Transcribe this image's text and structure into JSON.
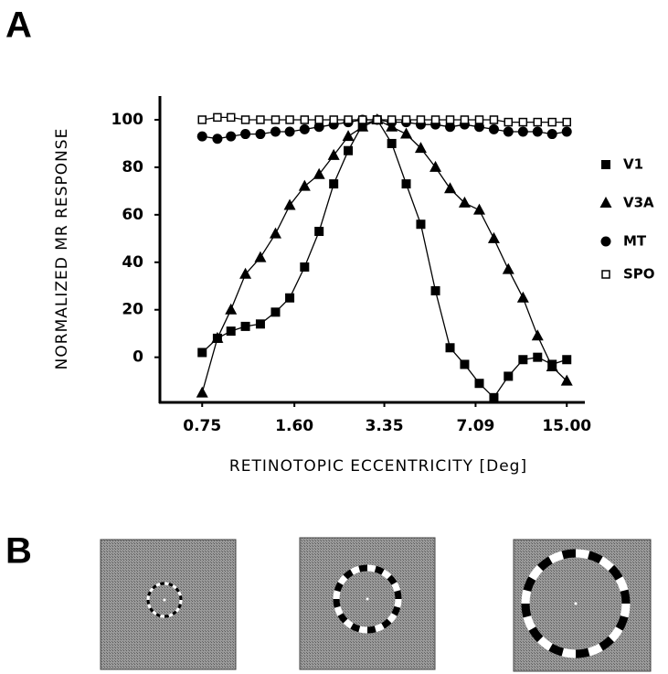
{
  "panels": {
    "a_label": "A",
    "b_label": "B"
  },
  "chart_data": {
    "type": "line",
    "xlabel": "RETINOTOPIC ECCENTRICITY [Deg]",
    "ylabel": "NORMALIZED MR RESPONSE",
    "x_scale": "log",
    "xlim": [
      0.53,
      17.4
    ],
    "xticks": [
      0.75,
      {
        "value": 1.6,
        "label": "1.60"
      },
      3.35,
      7.09,
      {
        "value": 15,
        "label": "15.00"
      }
    ],
    "ylim": [
      -19,
      110
    ],
    "yticks": [
      0,
      20,
      40,
      60,
      80,
      100
    ],
    "grid": false,
    "legend": "right",
    "x": [
      0.75,
      0.85,
      0.95,
      1.07,
      1.21,
      1.37,
      1.54,
      1.74,
      1.96,
      2.21,
      2.49,
      2.8,
      3.16,
      3.56,
      4.01,
      4.52,
      5.1,
      5.75,
      6.48,
      7.31,
      8.24,
      9.28,
      10.47,
      11.8,
      13.3,
      15.0
    ],
    "series": [
      {
        "name": "V1",
        "color": "#000000",
        "marker": "square",
        "values": [
          2,
          8,
          11,
          13,
          14,
          19,
          25,
          38,
          53,
          73,
          87,
          98,
          100,
          90,
          73,
          56,
          28,
          4,
          -3,
          -11,
          -17,
          -8,
          -1,
          0,
          -3,
          -1
        ]
      },
      {
        "name": "V3A",
        "color": "#000000",
        "marker": "triangle",
        "values": [
          -15,
          8,
          20,
          35,
          42,
          52,
          64,
          72,
          77,
          85,
          93,
          97,
          100,
          97,
          94,
          88,
          80,
          71,
          65,
          62,
          50,
          37,
          25,
          9,
          -4,
          -10
        ]
      },
      {
        "name": "MT",
        "color": "#000000",
        "marker": "circle",
        "values": [
          93,
          92,
          93,
          94,
          94,
          95,
          95,
          96,
          97,
          98,
          99,
          100,
          100,
          99,
          99,
          98,
          98,
          97,
          98,
          97,
          96,
          95,
          95,
          95,
          94,
          95
        ]
      },
      {
        "name": "SPO",
        "color": "#000000",
        "marker": "open-square",
        "values": [
          100,
          101,
          101,
          100,
          100,
          100,
          100,
          100,
          100,
          100,
          100,
          100,
          100,
          100,
          100,
          100,
          100,
          100,
          100,
          100,
          100,
          99,
          99,
          99,
          99,
          99
        ]
      }
    ]
  }
}
